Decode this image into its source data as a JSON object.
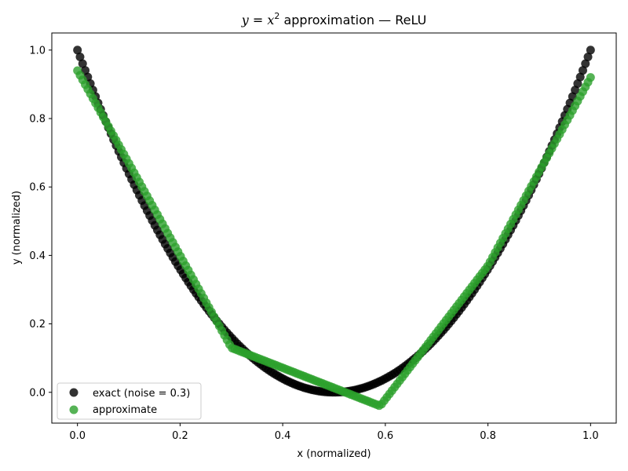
{
  "chart_data": {
    "type": "scatter",
    "title_parts": {
      "math_y": "y",
      "math_eq": " = ",
      "math_x": "x",
      "math_exp": "2",
      "suffix": " approximation — ReLU"
    },
    "xlabel": "x (normalized)",
    "ylabel": "y (normalized)",
    "xlim": [
      -0.05,
      1.05
    ],
    "ylim": [
      -0.09,
      1.05
    ],
    "xticks": [
      0.0,
      0.2,
      0.4,
      0.6,
      0.8,
      1.0
    ],
    "xtick_labels": [
      "0.0",
      "0.2",
      "0.4",
      "0.6",
      "0.8",
      "1.0"
    ],
    "yticks": [
      0.0,
      0.2,
      0.4,
      0.6,
      0.8,
      1.0
    ],
    "ytick_labels": [
      "0.0",
      "0.2",
      "0.4",
      "0.6",
      "0.8",
      "1.0"
    ],
    "grid": false,
    "legend_position": "lower-left",
    "series": [
      {
        "name": "exact (noise = 0.3)",
        "color": "#000000",
        "function": "4*(x-0.5)^2",
        "x_range": [
          0.0,
          1.0
        ],
        "n_points": 200
      },
      {
        "name": "approximate",
        "color": "#2ca02c",
        "knots": [
          [
            0.0,
            0.94
          ],
          [
            0.3,
            0.13
          ],
          [
            0.59,
            -0.04
          ],
          [
            0.8,
            0.37
          ],
          [
            1.0,
            0.92
          ]
        ],
        "x_range": [
          0.0,
          1.0
        ],
        "n_points": 200
      }
    ]
  }
}
